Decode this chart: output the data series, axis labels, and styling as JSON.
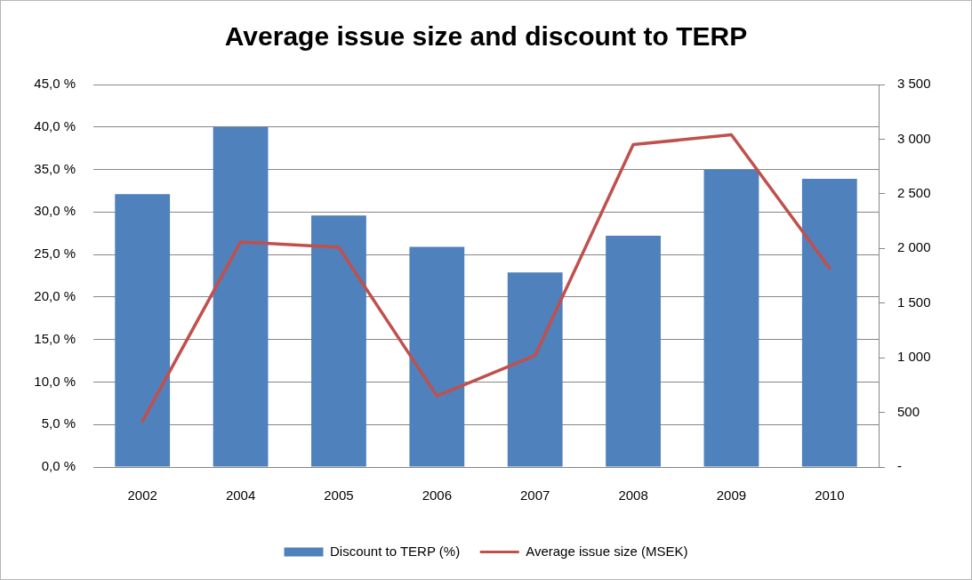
{
  "chart_data": {
    "type": "bar",
    "title": "Average issue size and discount to TERP",
    "categories": [
      "2002",
      "2004",
      "2005",
      "2006",
      "2007",
      "2008",
      "2009",
      "2010"
    ],
    "series": [
      {
        "name": "Discount to TERP (%)",
        "color": "#4f81bd",
        "values": [
          32.1,
          40.0,
          29.6,
          25.9,
          22.9,
          27.2,
          35.0,
          33.9
        ]
      },
      {
        "name": "Average issue size (MSEK)",
        "type": "line",
        "axis": "y2",
        "color": "#c0504d",
        "values": [
          420,
          2060,
          2010,
          650,
          1020,
          2950,
          3040,
          1820
        ]
      }
    ],
    "ylim": [
      0,
      45
    ],
    "yticks": [
      {
        "value": 0,
        "label": "0,0 %"
      },
      {
        "value": 5,
        "label": "5,0 %"
      },
      {
        "value": 10,
        "label": "10,0 %"
      },
      {
        "value": 15,
        "label": "15,0 %"
      },
      {
        "value": 20,
        "label": "20,0 %"
      },
      {
        "value": 25,
        "label": "25,0 %"
      },
      {
        "value": 30,
        "label": "30,0 %"
      },
      {
        "value": 35,
        "label": "35,0 %"
      },
      {
        "value": 40,
        "label": "40,0 %"
      },
      {
        "value": 45,
        "label": "45,0 %"
      }
    ],
    "y2lim": [
      0,
      3500
    ],
    "y2ticks": [
      {
        "value": 0,
        "label": "-"
      },
      500,
      {
        "value": 1000,
        "label": "1 000"
      },
      {
        "value": 1500,
        "label": "1 500"
      },
      {
        "value": 2000,
        "label": "2 000"
      },
      {
        "value": 2500,
        "label": "2 500"
      },
      {
        "value": 3000,
        "label": "3 000"
      },
      {
        "value": 3500,
        "label": "3 500"
      }
    ],
    "grid": "y",
    "legend": "bottom",
    "marker": "none",
    "line_style": "solid"
  }
}
